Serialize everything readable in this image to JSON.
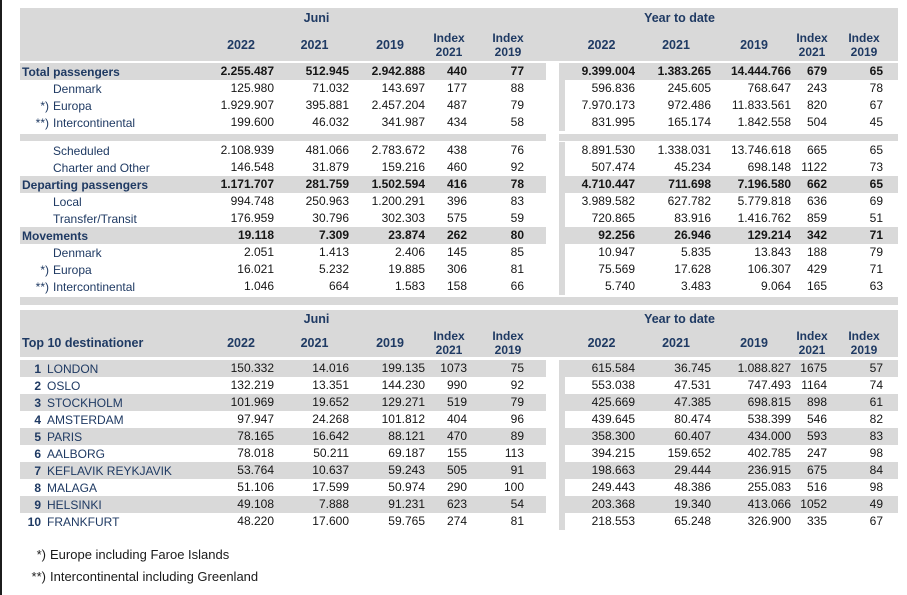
{
  "colors": {
    "navy": "#1F3A63",
    "row_fill": "#D9D9D9",
    "number_ink": "#161616"
  },
  "header_labels": {
    "juni": "Juni",
    "ytd": "Year to date",
    "years": [
      "2022",
      "2021",
      "2019"
    ],
    "index": [
      {
        "l1": "Index",
        "l2": "2021"
      },
      {
        "l1": "Index",
        "l2": "2019"
      }
    ]
  },
  "traffic_table": {
    "rows": [
      {
        "type": "section",
        "prefix": "",
        "label": "Total passengers",
        "values": [
          "2.255.487",
          "512.945",
          "2.942.888",
          "440",
          "77",
          "9.399.004",
          "1.383.265",
          "14.444.766",
          "679",
          "65"
        ]
      },
      {
        "type": "sub",
        "prefix": "",
        "label": "Denmark",
        "values": [
          "125.980",
          "71.032",
          "143.697",
          "177",
          "88",
          "596.836",
          "245.605",
          "768.647",
          "243",
          "78"
        ]
      },
      {
        "type": "sub",
        "prefix": "*)",
        "label": "Europa",
        "values": [
          "1.929.907",
          "395.881",
          "2.457.204",
          "487",
          "79",
          "7.970.173",
          "972.486",
          "11.833.561",
          "820",
          "67"
        ]
      },
      {
        "type": "sub",
        "prefix": "**)",
        "label": "Intercontinental",
        "values": [
          "199.600",
          "46.032",
          "341.987",
          "434",
          "58",
          "831.995",
          "165.174",
          "1.842.558",
          "504",
          "45"
        ]
      },
      {
        "type": "spacer"
      },
      {
        "type": "sub",
        "prefix": "",
        "label": "Scheduled",
        "values": [
          "2.108.939",
          "481.066",
          "2.783.672",
          "438",
          "76",
          "8.891.530",
          "1.338.031",
          "13.746.618",
          "665",
          "65"
        ]
      },
      {
        "type": "sub",
        "prefix": "",
        "label": "Charter and Other",
        "values": [
          "146.548",
          "31.879",
          "159.216",
          "460",
          "92",
          "507.474",
          "45.234",
          "698.148",
          "1122",
          "73"
        ]
      },
      {
        "type": "section",
        "prefix": "",
        "label": "Departing passengers",
        "values": [
          "1.171.707",
          "281.759",
          "1.502.594",
          "416",
          "78",
          "4.710.447",
          "711.698",
          "7.196.580",
          "662",
          "65"
        ]
      },
      {
        "type": "sub",
        "prefix": "",
        "label": "Local",
        "values": [
          "994.748",
          "250.963",
          "1.200.291",
          "396",
          "83",
          "3.989.582",
          "627.782",
          "5.779.818",
          "636",
          "69"
        ]
      },
      {
        "type": "sub",
        "prefix": "",
        "label": "Transfer/Transit",
        "values": [
          "176.959",
          "30.796",
          "302.303",
          "575",
          "59",
          "720.865",
          "83.916",
          "1.416.762",
          "859",
          "51"
        ]
      },
      {
        "type": "section",
        "prefix": "",
        "label": "Movements",
        "values": [
          "19.118",
          "7.309",
          "23.874",
          "262",
          "80",
          "92.256",
          "26.946",
          "129.214",
          "342",
          "71"
        ]
      },
      {
        "type": "sub",
        "prefix": "",
        "label": "Denmark",
        "values": [
          "2.051",
          "1.413",
          "2.406",
          "145",
          "85",
          "10.947",
          "5.835",
          "13.843",
          "188",
          "79"
        ]
      },
      {
        "type": "sub",
        "prefix": "*)",
        "label": "Europa",
        "values": [
          "16.021",
          "5.232",
          "19.885",
          "306",
          "81",
          "75.569",
          "17.628",
          "106.307",
          "429",
          "71"
        ]
      },
      {
        "type": "sub",
        "prefix": "**)",
        "label": "Intercontinental",
        "values": [
          "1.046",
          "664",
          "1.583",
          "158",
          "66",
          "5.740",
          "3.483",
          "9.064",
          "165",
          "63"
        ]
      },
      {
        "type": "bottomband"
      }
    ]
  },
  "top10_table": {
    "title": "Top 10 destinationer",
    "rows": [
      {
        "rank": "1",
        "city": "LONDON",
        "values": [
          "150.332",
          "14.016",
          "199.135",
          "1073",
          "75",
          "615.584",
          "36.745",
          "1.088.827",
          "1675",
          "57"
        ]
      },
      {
        "rank": "2",
        "city": "OSLO",
        "values": [
          "132.219",
          "13.351",
          "144.230",
          "990",
          "92",
          "553.038",
          "47.531",
          "747.493",
          "1164",
          "74"
        ]
      },
      {
        "rank": "3",
        "city": "STOCKHOLM",
        "values": [
          "101.969",
          "19.652",
          "129.271",
          "519",
          "79",
          "425.669",
          "47.385",
          "698.815",
          "898",
          "61"
        ]
      },
      {
        "rank": "4",
        "city": "AMSTERDAM",
        "values": [
          "97.947",
          "24.268",
          "101.812",
          "404",
          "96",
          "439.645",
          "80.474",
          "538.399",
          "546",
          "82"
        ]
      },
      {
        "rank": "5",
        "city": "PARIS",
        "values": [
          "78.165",
          "16.642",
          "88.121",
          "470",
          "89",
          "358.300",
          "60.407",
          "434.000",
          "593",
          "83"
        ]
      },
      {
        "rank": "6",
        "city": "AALBORG",
        "values": [
          "78.018",
          "50.211",
          "69.187",
          "155",
          "113",
          "394.215",
          "159.652",
          "402.785",
          "247",
          "98"
        ]
      },
      {
        "rank": "7",
        "city": "KEFLAVIK REYKJAVIK",
        "values": [
          "53.764",
          "10.637",
          "59.243",
          "505",
          "91",
          "198.663",
          "29.444",
          "236.915",
          "675",
          "84"
        ]
      },
      {
        "rank": "8",
        "city": "MALAGA",
        "values": [
          "51.106",
          "17.599",
          "50.974",
          "290",
          "100",
          "249.443",
          "48.386",
          "255.083",
          "516",
          "98"
        ]
      },
      {
        "rank": "9",
        "city": "HELSINKI",
        "values": [
          "49.108",
          "7.888",
          "91.231",
          "623",
          "54",
          "203.368",
          "19.340",
          "413.066",
          "1052",
          "49"
        ]
      },
      {
        "rank": "10",
        "city": "FRANKFURT",
        "values": [
          "48.220",
          "17.600",
          "59.765",
          "274",
          "81",
          "218.553",
          "65.248",
          "326.900",
          "335",
          "67"
        ]
      }
    ]
  },
  "footnotes": [
    {
      "prefix": "*)",
      "text": "Europe including Faroe Islands"
    },
    {
      "prefix": "**)",
      "text": "Intercontinental including Greenland"
    }
  ]
}
